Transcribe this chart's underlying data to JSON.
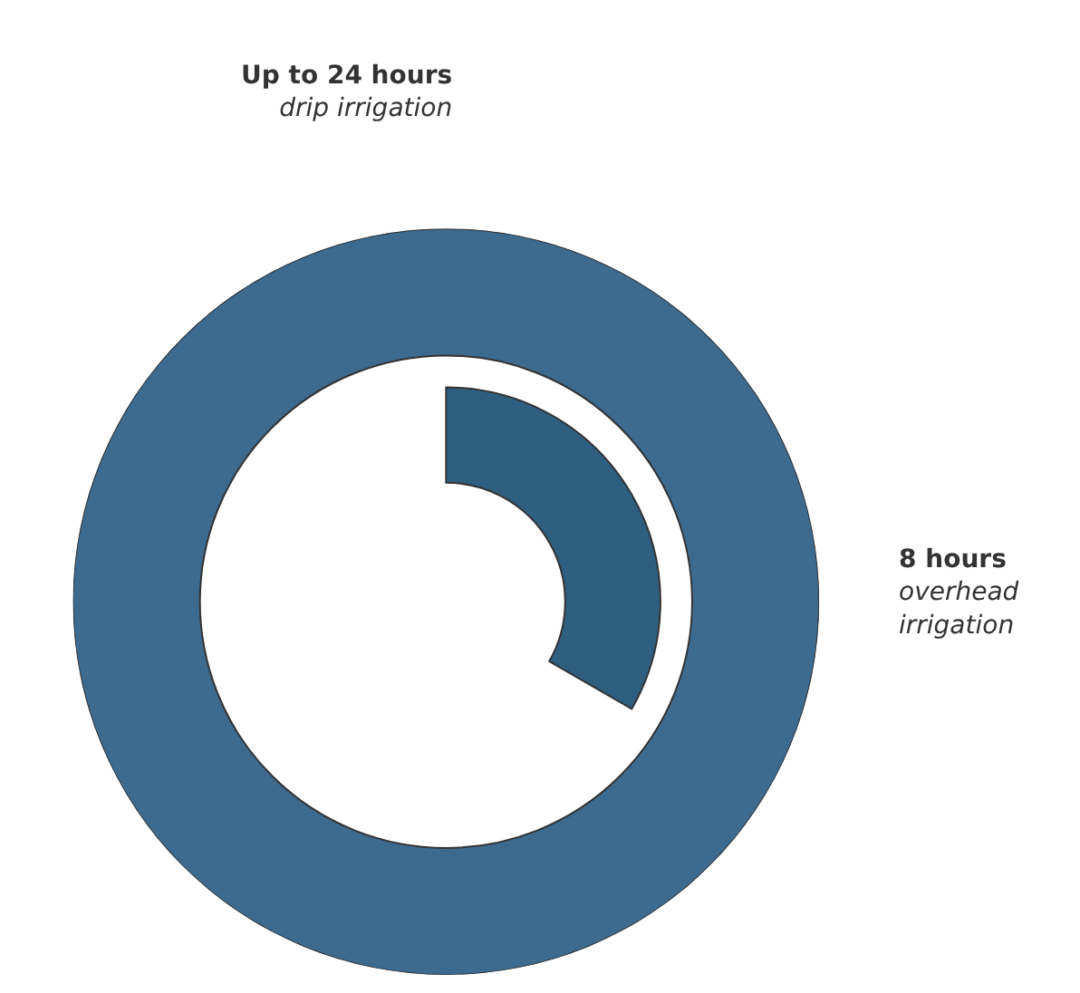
{
  "chart_data": {
    "type": "other",
    "categories": [
      "drip irrigation",
      "overhead irrigation"
    ],
    "values": [
      24,
      8
    ],
    "value_labels": [
      "Up to 24 hours",
      "8 hours"
    ],
    "colors": [
      "#3d6a8f",
      "#2f5f80"
    ]
  }
}
